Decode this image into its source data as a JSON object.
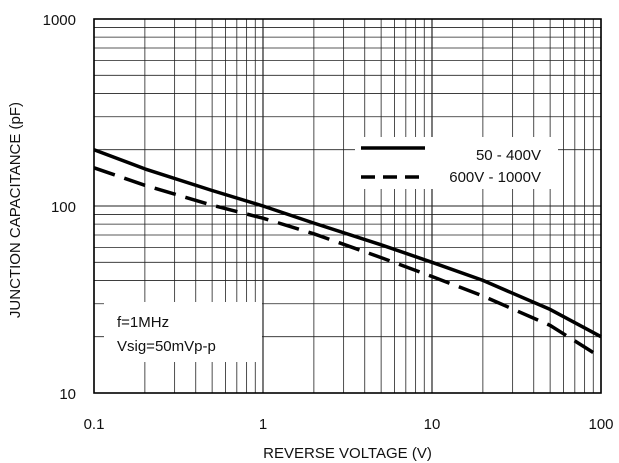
{
  "chart_data": {
    "type": "line",
    "xlabel": "REVERSE VOLTAGE (V)",
    "ylabel": "JUNCTION CAPACITANCE (pF)",
    "x_scale": "log",
    "y_scale": "log",
    "xlim": [
      0.1,
      100
    ],
    "ylim": [
      10,
      1000
    ],
    "x_ticks": [
      "0.1",
      "1",
      "10",
      "100"
    ],
    "y_ticks": [
      "10",
      "100",
      "1000"
    ],
    "grid": true,
    "legend_position": "upper-right",
    "annotation": [
      "f=1MHz",
      "Vsig=50mVp-p"
    ],
    "series": [
      {
        "name": "50 - 400V",
        "line_style": "solid",
        "x": [
          0.1,
          0.2,
          0.5,
          1,
          2,
          5,
          10,
          20,
          50,
          100
        ],
        "y": [
          200,
          158,
          121,
          100,
          81,
          62,
          50,
          40,
          28,
          20
        ]
      },
      {
        "name": "600V - 1000V",
        "line_style": "dashed",
        "x": [
          0.1,
          0.2,
          0.5,
          1,
          2,
          5,
          10,
          20,
          50,
          100
        ],
        "y": [
          160,
          129,
          101,
          86,
          71,
          53,
          42,
          33,
          23,
          15.5
        ]
      }
    ]
  }
}
